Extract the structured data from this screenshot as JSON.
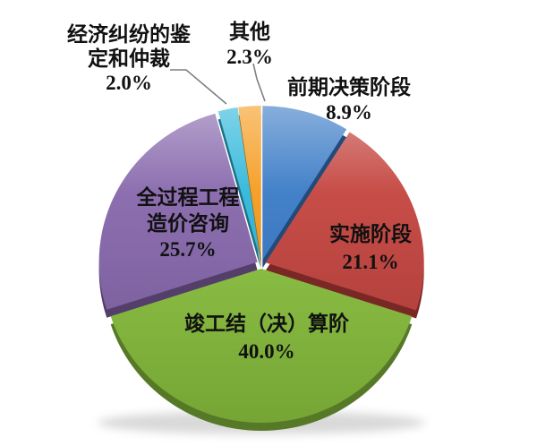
{
  "chart_data": {
    "type": "pie",
    "title": "",
    "legend": "none",
    "background": "#FFFFFF",
    "start_angle_deg": 0,
    "direction": "clockwise",
    "style": "3d-exploded",
    "leader_line_color": "#7F7F7F",
    "label_text_color": "#111111",
    "categories": [
      "前期决策阶段",
      "实施阶段",
      "竣工结（决）算阶",
      "全过程工程造价咨询",
      "经济纠纷的鉴定和仲裁",
      "其他"
    ],
    "values": [
      8.9,
      21.1,
      40.0,
      25.7,
      2.0,
      2.3
    ],
    "slices": [
      {
        "name": "early-decision-stage",
        "label": "前期决策阶段",
        "value": 8.9,
        "pct": "8.9%",
        "color": "#3879C6",
        "label_lines": [
          "前期决策阶段",
          "8.9%"
        ]
      },
      {
        "name": "implementation-stage",
        "label": "实施阶段",
        "value": 21.1,
        "pct": "21.1%",
        "color": "#C4423D",
        "label_lines": [
          "实施阶段",
          "21.1%"
        ]
      },
      {
        "name": "completion-settlement-stage",
        "label": "竣工结（决）算阶",
        "value": 40.0,
        "pct": "40.0%",
        "color": "#8CC43F",
        "label_lines": [
          "竣工结（决）算阶",
          "40.0%"
        ]
      },
      {
        "name": "whole-process-cost-consulting",
        "label": "全过程工程造价咨询",
        "value": 25.7,
        "pct": "25.7%",
        "color": "#8666AC",
        "label_lines": [
          "全过程工程",
          "造价咨询",
          "25.7%"
        ]
      },
      {
        "name": "economic-dispute-appraisal-arbitration",
        "label": "经济纠纷的鉴定和仲裁",
        "value": 2.0,
        "pct": "2.0%",
        "color": "#2EB7DA",
        "label_lines": [
          "经济纠纷的鉴",
          "定和仲裁",
          "2.0%"
        ]
      },
      {
        "name": "other",
        "label": "其他",
        "value": 2.3,
        "pct": "2.3%",
        "color": "#F59C1E",
        "label_lines": [
          "其他",
          "2.3%"
        ]
      }
    ]
  }
}
